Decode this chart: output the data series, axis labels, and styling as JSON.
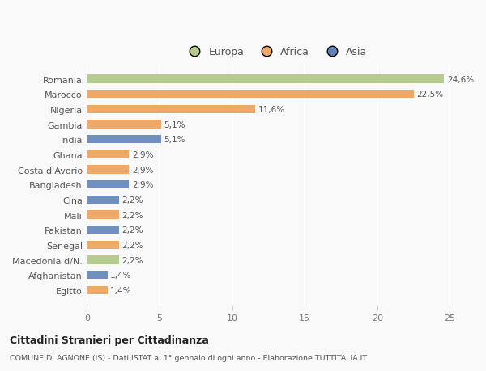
{
  "categories": [
    "Romania",
    "Marocco",
    "Nigeria",
    "Gambia",
    "India",
    "Ghana",
    "Costa d'Avorio",
    "Bangladesh",
    "Cina",
    "Mali",
    "Pakistan",
    "Senegal",
    "Macedonia d/N.",
    "Afghanistan",
    "Egitto"
  ],
  "values": [
    24.6,
    22.5,
    11.6,
    5.1,
    5.1,
    2.9,
    2.9,
    2.9,
    2.2,
    2.2,
    2.2,
    2.2,
    2.2,
    1.4,
    1.4
  ],
  "labels": [
    "24,6%",
    "22,5%",
    "11,6%",
    "5,1%",
    "5,1%",
    "2,9%",
    "2,9%",
    "2,9%",
    "2,2%",
    "2,2%",
    "2,2%",
    "2,2%",
    "2,2%",
    "1,4%",
    "1,4%"
  ],
  "colors": [
    "#b5cc8e",
    "#f0a868",
    "#f0a868",
    "#f0a868",
    "#7090c0",
    "#f0a868",
    "#f0a868",
    "#7090c0",
    "#7090c0",
    "#f0a868",
    "#7090c0",
    "#f0a868",
    "#b5cc8e",
    "#7090c0",
    "#f0a868"
  ],
  "legend": [
    {
      "label": "Europa",
      "color": "#b5cc8e"
    },
    {
      "label": "Africa",
      "color": "#f0a868"
    },
    {
      "label": "Asia",
      "color": "#6080b8"
    }
  ],
  "xlim": [
    0,
    26
  ],
  "xticks": [
    0,
    5,
    10,
    15,
    20,
    25
  ],
  "title1": "Cittadini Stranieri per Cittadinanza",
  "title2": "COMUNE DI AGNONE (IS) - Dati ISTAT al 1° gennaio di ogni anno - Elaborazione TUTTITALIA.IT",
  "bg_color": "#f9f9f9",
  "grid_color": "#ffffff",
  "bar_height": 0.55
}
